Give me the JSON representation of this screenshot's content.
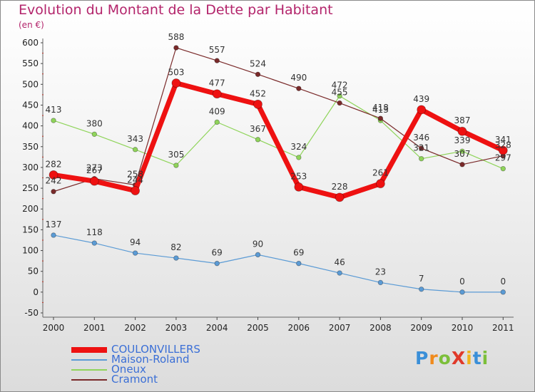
{
  "header": {
    "title": "Evolution du Montant de la Dette par Habitant",
    "unit": "(en €)"
  },
  "logo": {
    "text": "ProXiti",
    "letter_colors": [
      "#3a8fd8",
      "#f08a1c",
      "#7cbf3a",
      "#e03a2a",
      "#f0b41c",
      "#3a8fd8",
      "#7cbf3a"
    ]
  },
  "chart_data": {
    "type": "line",
    "title": "Evolution du Montant de la Dette par Habitant",
    "ylabel": "(en €)",
    "xlabel": "",
    "x": [
      "2000",
      "2001",
      "2002",
      "2003",
      "2004",
      "2005",
      "2006",
      "2007",
      "2008",
      "2009",
      "2010",
      "2011"
    ],
    "ylim": [
      -50,
      600
    ],
    "yticks": [
      "-50",
      "0",
      "50",
      "100",
      "150",
      "200",
      "250",
      "300",
      "350",
      "400",
      "450",
      "500",
      "550",
      "600"
    ],
    "grid": false,
    "legend_position": "bottom-left",
    "series": [
      {
        "name": "COULONVILLERS",
        "color": "#ee1111",
        "values": [
          282,
          267,
          244,
          503,
          477,
          452,
          253,
          228,
          261,
          439,
          387,
          341
        ],
        "labels": [
          "282",
          "267",
          "244",
          "503",
          "477",
          "452",
          "253",
          "228",
          "261",
          "439",
          "387",
          "341"
        ]
      },
      {
        "name": "Maison-Roland",
        "color": "#5b9bd5",
        "values": [
          137,
          118,
          94,
          82,
          69,
          90,
          69,
          46,
          23,
          7,
          0,
          0
        ],
        "labels": [
          "137",
          "118",
          "94",
          "82",
          "69",
          "90",
          "69",
          "46",
          "23",
          "7",
          "0",
          "0"
        ]
      },
      {
        "name": "Oneux",
        "color": "#8fd45a",
        "values": [
          413,
          380,
          343,
          305,
          409,
          367,
          324,
          472,
          413,
          321,
          339,
          297
        ],
        "labels": [
          "413",
          "380",
          "343",
          "305",
          "409",
          "367",
          "324",
          "472",
          "413",
          "321",
          "339",
          "297"
        ]
      },
      {
        "name": "Cramont",
        "color": "#7a2a2a",
        "values": [
          242,
          273,
          258,
          588,
          557,
          524,
          490,
          455,
          418,
          346,
          307,
          328
        ],
        "labels": [
          "242",
          "273",
          "258",
          "588",
          "557",
          "524",
          "490",
          "455",
          "418",
          "346",
          "307",
          "328"
        ]
      }
    ]
  }
}
